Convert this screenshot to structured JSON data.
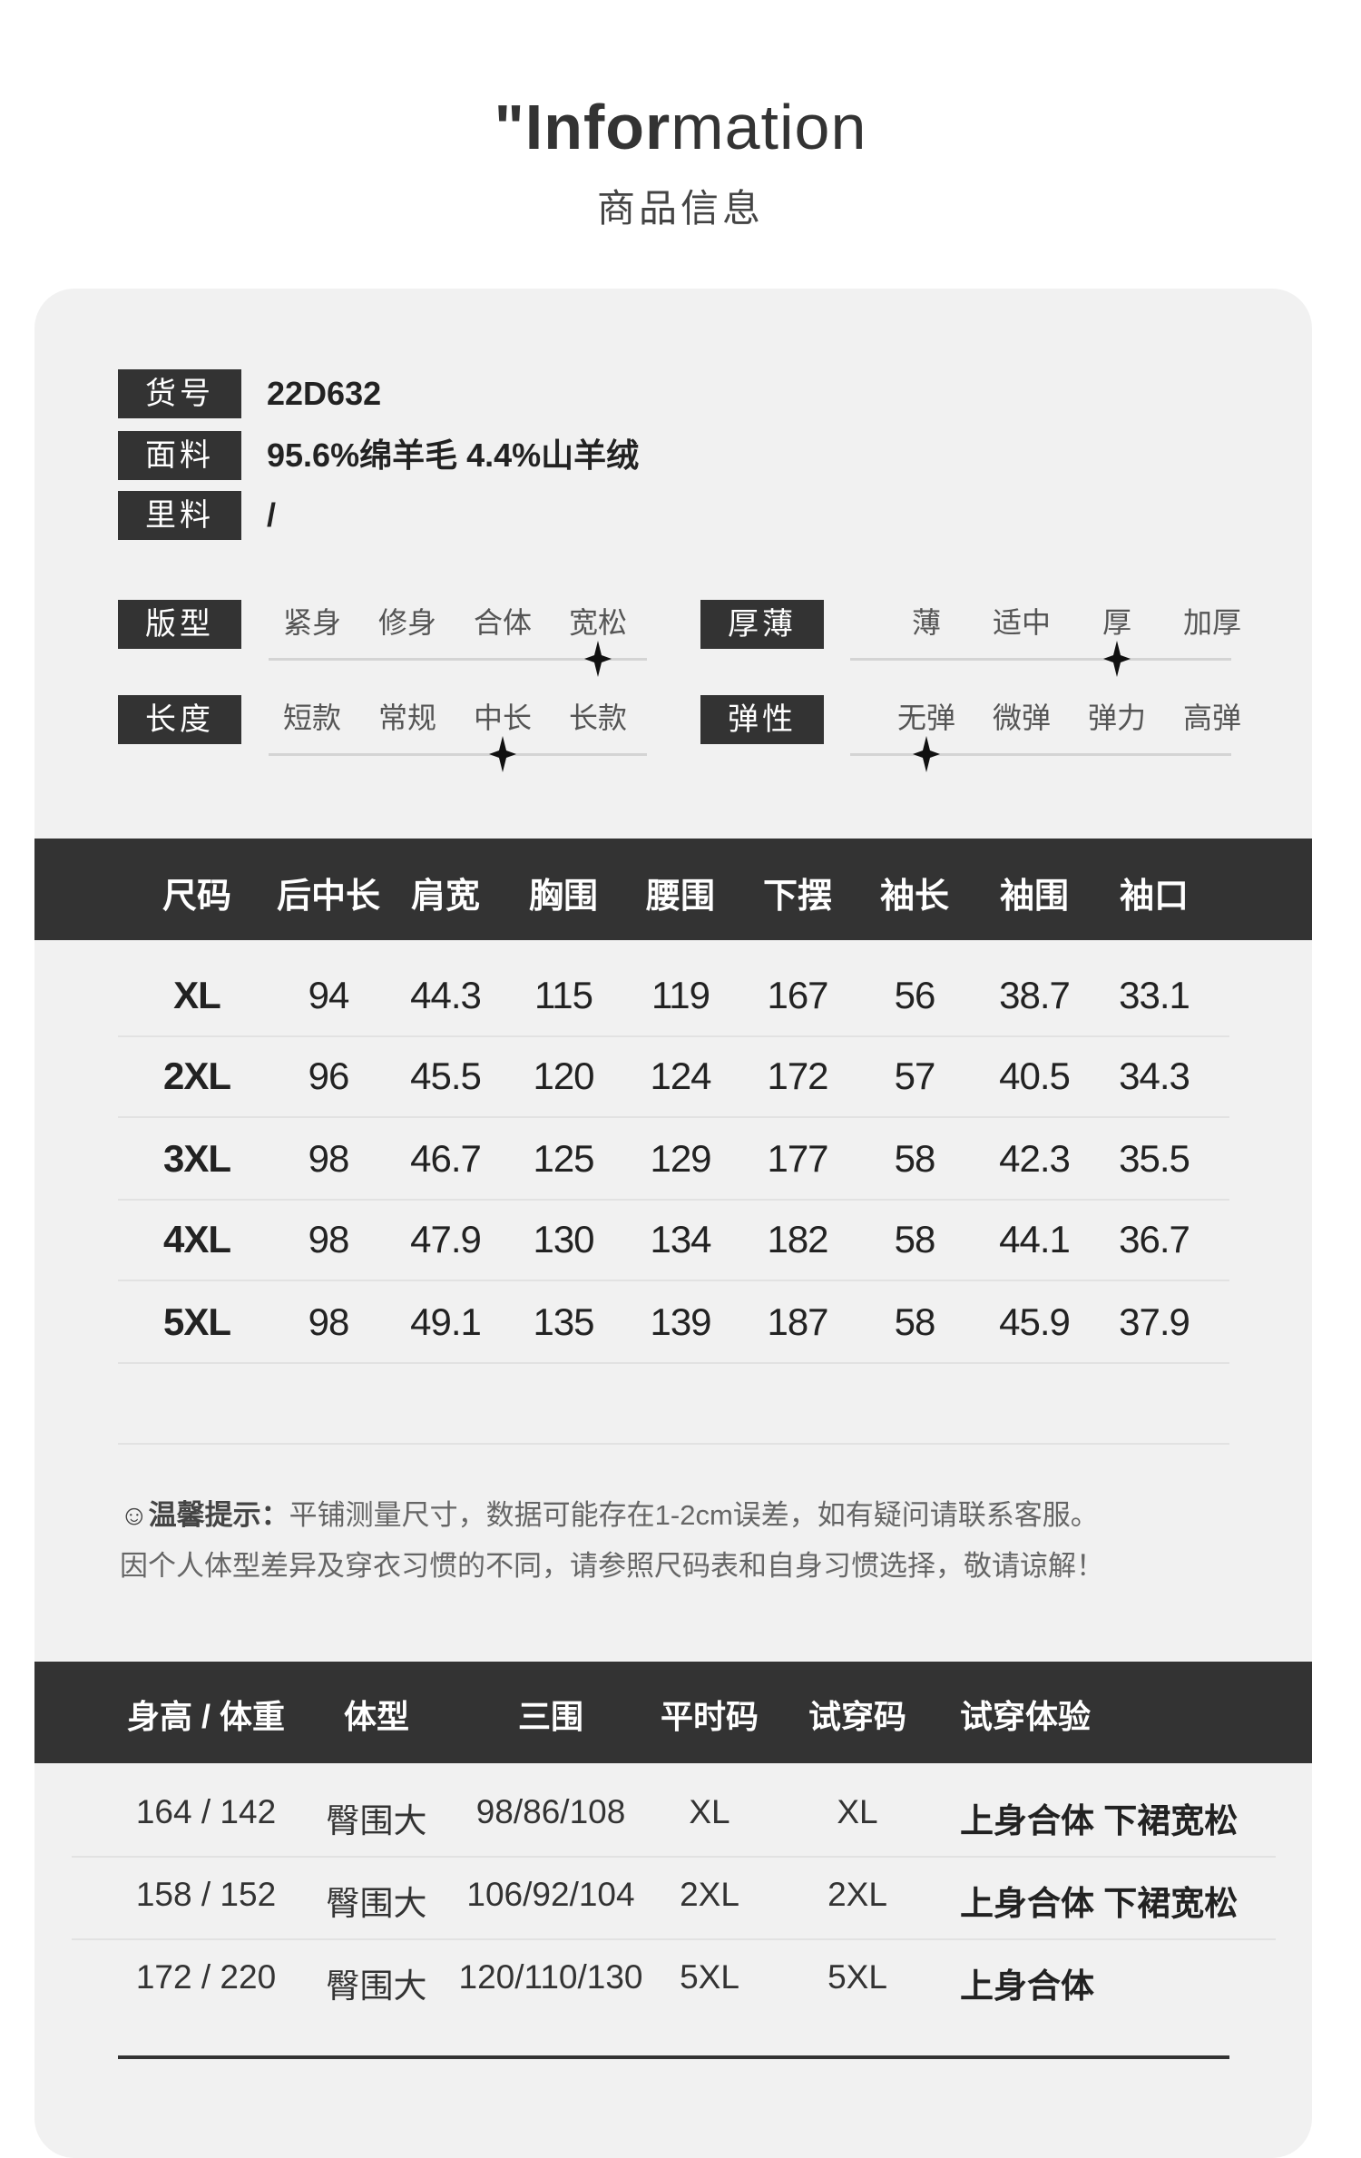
{
  "header": {
    "title_bold": "\"Infor",
    "title_light": "mation",
    "subtitle": "商品信息"
  },
  "info": [
    {
      "label": "货号",
      "value": "22D632"
    },
    {
      "label": "面料",
      "value": "95.6%绵羊毛 4.4%山羊绒"
    },
    {
      "label": "里料",
      "value": "/"
    }
  ],
  "attributes": [
    {
      "label": "版型",
      "options": [
        "紧身",
        "修身",
        "合体",
        "宽松"
      ],
      "selected_index": 3
    },
    {
      "label": "厚薄",
      "options": [
        "薄",
        "适中",
        "厚",
        "加厚"
      ],
      "selected_index": 2
    },
    {
      "label": "长度",
      "options": [
        "短款",
        "常规",
        "中长",
        "长款"
      ],
      "selected_index": 2
    },
    {
      "label": "弹性",
      "options": [
        "无弹",
        "微弹",
        "弹力",
        "高弹"
      ],
      "selected_index": 0
    }
  ],
  "size_table": {
    "headers": [
      "尺码",
      "后中长",
      "肩宽",
      "胸围",
      "腰围",
      "下摆",
      "袖长",
      "袖围",
      "袖口"
    ],
    "rows": [
      [
        "XL",
        "94",
        "44.3",
        "115",
        "119",
        "167",
        "56",
        "38.7",
        "33.1"
      ],
      [
        "2XL",
        "96",
        "45.5",
        "120",
        "124",
        "172",
        "57",
        "40.5",
        "34.3"
      ],
      [
        "3XL",
        "98",
        "46.7",
        "125",
        "129",
        "177",
        "58",
        "42.3",
        "35.5"
      ],
      [
        "4XL",
        "98",
        "47.9",
        "130",
        "134",
        "182",
        "58",
        "44.1",
        "36.7"
      ],
      [
        "5XL",
        "98",
        "49.1",
        "135",
        "139",
        "187",
        "58",
        "45.9",
        "37.9"
      ]
    ]
  },
  "notice": {
    "icon": "smiley-icon",
    "title": "温馨提示：",
    "line1": "平铺测量尺寸，数据可能存在1-2cm误差，如有疑问请联系客服。",
    "line2": "因个人体型差异及穿衣习惯的不同，请参照尺码表和自身习惯选择，敬请谅解！"
  },
  "tryon_table": {
    "headers": [
      "身高 / 体重",
      "体型",
      "三围",
      "平时码",
      "试穿码",
      "试穿体验"
    ],
    "rows": [
      [
        "164 / 142",
        "臀围大",
        "98/86/108",
        "XL",
        "XL",
        "上身合体 下裙宽松"
      ],
      [
        "158 / 152",
        "臀围大",
        "106/92/104",
        "2XL",
        "2XL",
        "上身合体 下裙宽松"
      ],
      [
        "172 / 220",
        "臀围大",
        "120/110/130",
        "5XL",
        "5XL",
        "上身合体"
      ]
    ]
  },
  "colors": {
    "dark": "#333333",
    "card": "#f1f1f1"
  }
}
